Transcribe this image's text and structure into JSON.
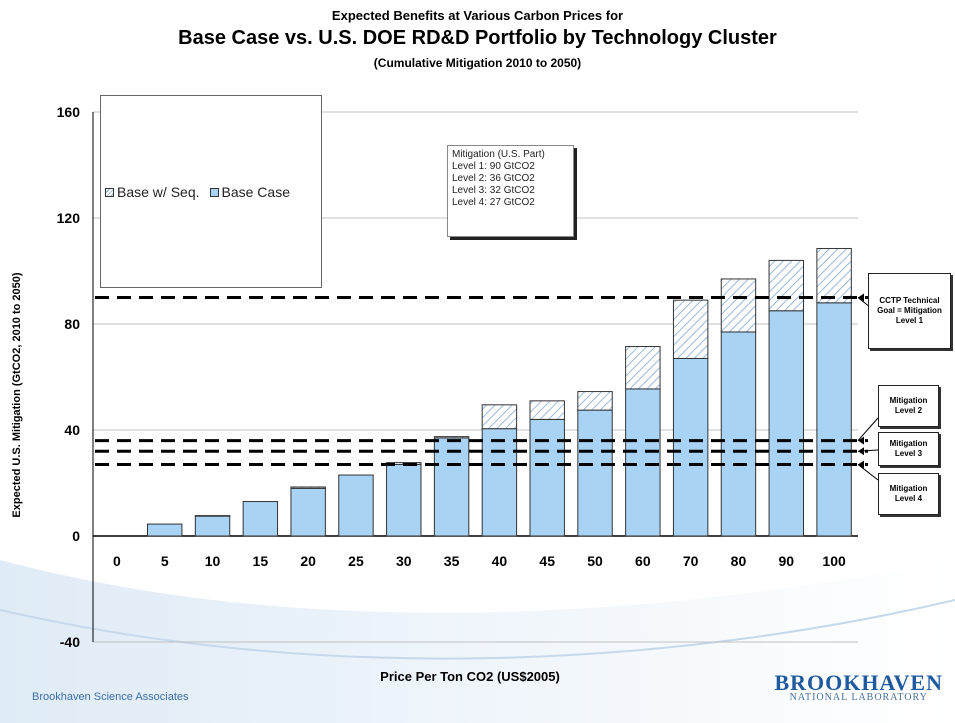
{
  "title": {
    "line1": "Expected Benefits at Various Carbon Prices for",
    "line2": "Base Case vs. U.S. DOE RD&D Portfolio by Technology Cluster",
    "line3": "(Cumulative Mitigation 2010 to 2050)"
  },
  "legend": {
    "seq_label": "Base w/ Seq.",
    "base_label": "Base Case"
  },
  "mitigation_box": {
    "title": "Mitigation (U.S. Part)",
    "levels": [
      "Level 1:  90 GtCO2",
      "Level 2:  36 GtCO2",
      "Level 3:  32 GtCO2",
      "Level 4:  27 GtCO2"
    ]
  },
  "callouts": {
    "cctp": "CCTP Technical Goal = Mitigation Level 1",
    "level2": "Mitigation Level 2",
    "level3": "Mitigation Level 3",
    "level4": "Mitigation Level 4"
  },
  "footer": {
    "org": "Brookhaven Science Associates",
    "logo_word": "BROOKHAVEN",
    "logo_sub": "NATIONAL LABORATORY"
  },
  "colors": {
    "base": "#a9d3f5",
    "bar_outline": "#333333",
    "hatch": "#7fa9d6",
    "gridline": "#c0c0c0",
    "axis": "#000000"
  },
  "chart_data": {
    "type": "bar",
    "stacked": true,
    "categories": [
      "0",
      "5",
      "10",
      "15",
      "20",
      "25",
      "30",
      "35",
      "40",
      "45",
      "50",
      "60",
      "70",
      "80",
      "90",
      "100"
    ],
    "series": [
      {
        "name": "Base Case",
        "values": [
          0,
          4.5,
          7.5,
          13,
          18,
          23,
          27,
          37,
          40.5,
          44,
          47.5,
          55.5,
          67,
          77,
          85,
          88
        ]
      },
      {
        "name": "Base w/ Seq.",
        "values": [
          0,
          0,
          0.2,
          0,
          0.5,
          0,
          0.7,
          0.5,
          9,
          7,
          7,
          16,
          22,
          20,
          19,
          20.5
        ]
      }
    ],
    "reference_lines": [
      90,
      36,
      32,
      27
    ],
    "xlabel": "Price Per Ton CO2 (US$2005)",
    "ylabel": "Expected U.S. Mitigation (GtCO2, 2010 to 2050)",
    "ylim": [
      -40,
      160
    ],
    "yticks": [
      -40,
      0,
      40,
      80,
      120,
      160
    ],
    "grid": true
  }
}
